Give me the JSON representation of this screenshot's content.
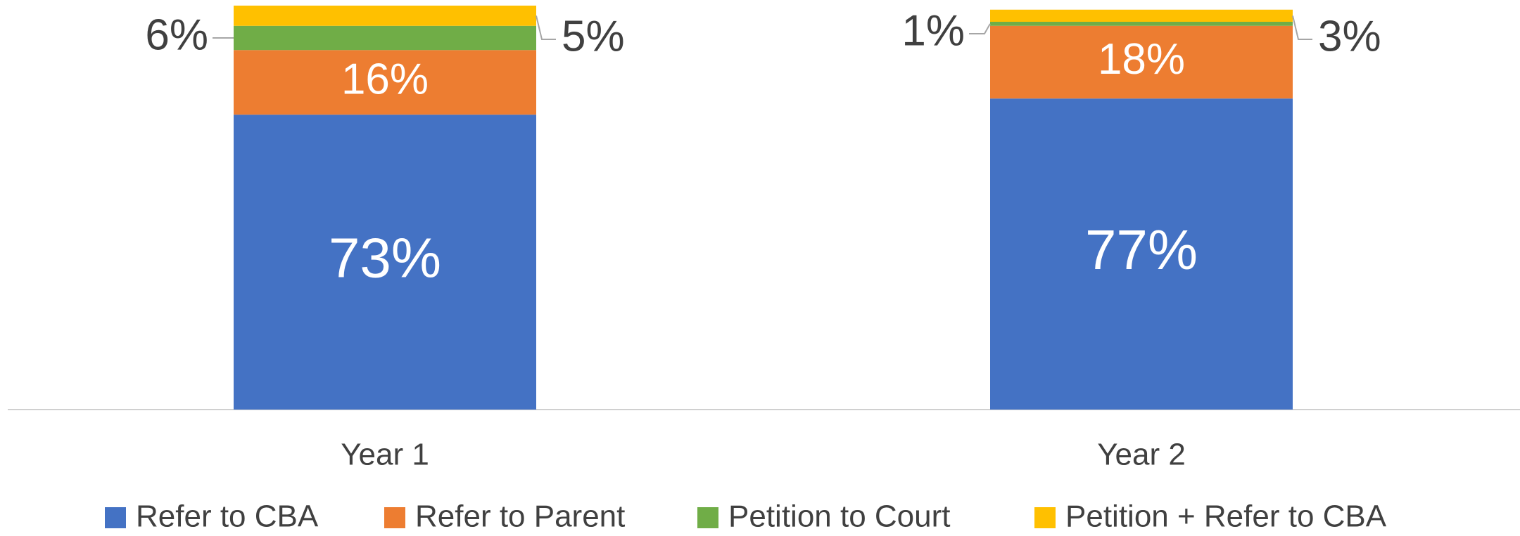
{
  "chart_data": {
    "type": "stacked_bar",
    "categories": [
      "Year 1",
      "Year 2"
    ],
    "series": [
      {
        "name": "Refer to CBA",
        "color": "#4472c4",
        "values": [
          73,
          77
        ],
        "value_labels": [
          "73%",
          "77%"
        ]
      },
      {
        "name": "Refer to Parent",
        "color": "#ed7d31",
        "values": [
          16,
          18
        ],
        "value_labels": [
          "16%",
          "18%"
        ]
      },
      {
        "name": "Petition to Court",
        "color": "#70ad47",
        "values": [
          6,
          1
        ],
        "value_labels": [
          "6%",
          "1%"
        ]
      },
      {
        "name": "Petition + Refer to CBA",
        "color": "#ffc000",
        "values": [
          5,
          3
        ],
        "value_labels": [
          "5%",
          "3%"
        ]
      }
    ],
    "ylim": [
      0,
      100
    ],
    "legend": "bottom"
  }
}
